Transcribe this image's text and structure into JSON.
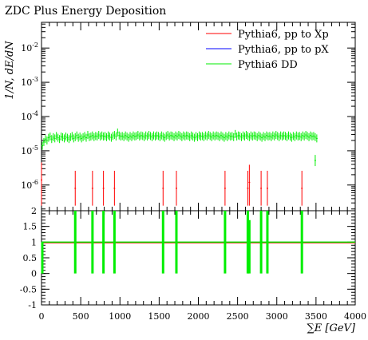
{
  "chart_data": [
    {
      "type": "scatter",
      "title": "ZDC Plus Energy Deposition",
      "ylabel": "1/N, dE/dN",
      "xlim": [
        0,
        4000
      ],
      "ylim": [
        2e-07,
        0.05
      ],
      "yscale": "log",
      "y_tick_labels": [
        "10^{-6}",
        "10^{-5}",
        "10^{-4}",
        "10^{-3}",
        "10^{-2}"
      ],
      "legend_position": "top-right",
      "series": [
        {
          "name": "Pythia6, pp to Xp",
          "color": "#ff0000",
          "x": [
            0,
            430,
            650,
            790,
            930,
            1550,
            1720,
            2340,
            2630,
            2650,
            2800,
            2880,
            3320
          ],
          "y": [
            1.4e-06,
            8e-07,
            8e-07,
            8e-07,
            8e-07,
            8e-07,
            8e-07,
            8e-07,
            8e-07,
            1.2e-06,
            8e-07,
            8e-07,
            8e-07
          ]
        },
        {
          "name": "Pythia6, pp to pX",
          "color": "#0000ff",
          "x": [],
          "y": []
        },
        {
          "name": "Pythia6 DD",
          "color": "#00ee00",
          "x_start": 10,
          "x_step": 20,
          "y": [
            1.4e-05,
            1.8e-05,
            2.2e-05,
            2e-05,
            2.4e-05,
            2.6e-05,
            2.2e-05,
            2.5e-05,
            2.3e-05,
            2.7e-05,
            2.4e-05,
            2.2e-05,
            2.6e-05,
            2.5e-05,
            2.3e-05,
            2.6e-05,
            2.4e-05,
            2.2e-05,
            2.5e-05,
            2.7e-05,
            2.3e-05,
            2.5e-05,
            2.8e-05,
            2.4e-05,
            2.6e-05,
            2.3e-05,
            2.5e-05,
            2.7e-05,
            2.4e-05,
            2.9e-05,
            2.5e-05,
            2.6e-05,
            2.8e-05,
            2.5e-05,
            2.7e-05,
            2.6e-05,
            2.9e-05,
            2.6e-05,
            2.8e-05,
            2.6e-05,
            2.7e-05,
            2.5e-05,
            2.8e-05,
            2.6e-05,
            2.4e-05,
            2.7e-05,
            2.9e-05,
            2.6e-05,
            3.4e-05,
            2.8e-05,
            2.6e-05,
            2.7e-05,
            2.5e-05,
            2.8e-05,
            2.6e-05,
            2.4e-05,
            2.7e-05,
            2.5e-05,
            2.8e-05,
            2.6e-05,
            2.7e-05,
            2.9e-05,
            2.6e-05,
            2.8e-05,
            2.7e-05,
            2.5e-05,
            2.8e-05,
            2.6e-05,
            2.9e-05,
            2.7e-05,
            2.5e-05,
            2.8e-05,
            2.6e-05,
            2.8e-05,
            2.7e-05,
            2.5e-05,
            2.8e-05,
            2.6e-05,
            2.4e-05,
            2.7e-05,
            2.9e-05,
            2.6e-05,
            2.8e-05,
            2.7e-05,
            2.5e-05,
            2.8e-05,
            2.6e-05,
            2.9e-05,
            2.7e-05,
            2.5e-05,
            2.8e-05,
            2.6e-05,
            2.8e-05,
            2.7e-05,
            2.5e-05,
            2.8e-05,
            2.6e-05,
            2.4e-05,
            2.7e-05,
            2.5e-05,
            2.8e-05,
            2.6e-05,
            2.7e-05,
            2.5e-05,
            2.8e-05,
            2.6e-05,
            2.9e-05,
            2.7e-05,
            2.5e-05,
            2.8e-05,
            2.6e-05,
            2.8e-05,
            2.7e-05,
            2.5e-05,
            2.8e-05,
            2.6e-05,
            2.4e-05,
            2.7e-05,
            2.5e-05,
            2.8e-05,
            2.6e-05,
            2.7e-05,
            2.5e-05,
            3.1e-05,
            2.6e-05,
            2.8e-05,
            2.7e-05,
            2.5e-05,
            2.8e-05,
            2.6e-05,
            2.9e-05,
            2.7e-05,
            2.5e-05,
            2.8e-05,
            2.6e-05,
            2.8e-05,
            2.7e-05,
            2.5e-05,
            2.8e-05,
            2.6e-05,
            2.4e-05,
            2.7e-05,
            2.5e-05,
            2.8e-05,
            2.6e-05,
            2.7e-05,
            2.5e-05,
            2.8e-05,
            2.6e-05,
            2.9e-05,
            2.7e-05,
            2.5e-05,
            2.8e-05,
            2.6e-05,
            2.8e-05,
            2.7e-05,
            2.5e-05,
            2.8e-05,
            2.6e-05,
            2.4e-05,
            2.7e-05,
            2.5e-05,
            2.8e-05,
            2.6e-05,
            2.7e-05,
            2.5e-05,
            2.8e-05,
            2.6e-05,
            2.9e-05,
            2.7e-05,
            2.5e-05,
            2.8e-05,
            2.6e-05,
            2.7e-05,
            2.5e-05,
            2.3e-05
          ],
          "extra_points": [
            {
              "x": 3490,
              "y": 5.2e-06
            }
          ]
        }
      ]
    },
    {
      "type": "scatter",
      "xlabel": "∑E [GeV]",
      "xlim": [
        0,
        4000
      ],
      "ylim": [
        -1,
        2
      ],
      "x_tick_labels": [
        "0",
        "500",
        "1000",
        "1500",
        "2000",
        "2500",
        "3000",
        "3500",
        "4000"
      ],
      "y_tick_labels": [
        "-1",
        "-0.5",
        "0",
        "0.5",
        "1",
        "1.5",
        "2"
      ],
      "reference_line": 1,
      "series": [
        {
          "name": "Pythia6, pp to Xp",
          "color": "#ff0000",
          "x": [
            0,
            4000
          ],
          "y": [
            1,
            1
          ]
        },
        {
          "name": "Pythia6 DD",
          "color": "#00ee00",
          "baseline": 1,
          "x": [
            10,
            430,
            650,
            790,
            930,
            1550,
            1720,
            2340,
            2630,
            2650,
            2800,
            2880,
            3320
          ],
          "y": [
            0.3,
            0,
            0,
            0,
            0,
            0,
            0,
            0,
            0,
            0.3,
            0,
            0,
            0
          ],
          "err_low": [
            0.3,
            0,
            0,
            0,
            0,
            0,
            0,
            0,
            0,
            0.3,
            0,
            0,
            0
          ],
          "err_high": [
            0.7,
            2,
            2,
            2,
            2,
            2,
            2,
            2,
            2,
            1.4,
            2,
            2,
            2
          ]
        }
      ]
    }
  ]
}
